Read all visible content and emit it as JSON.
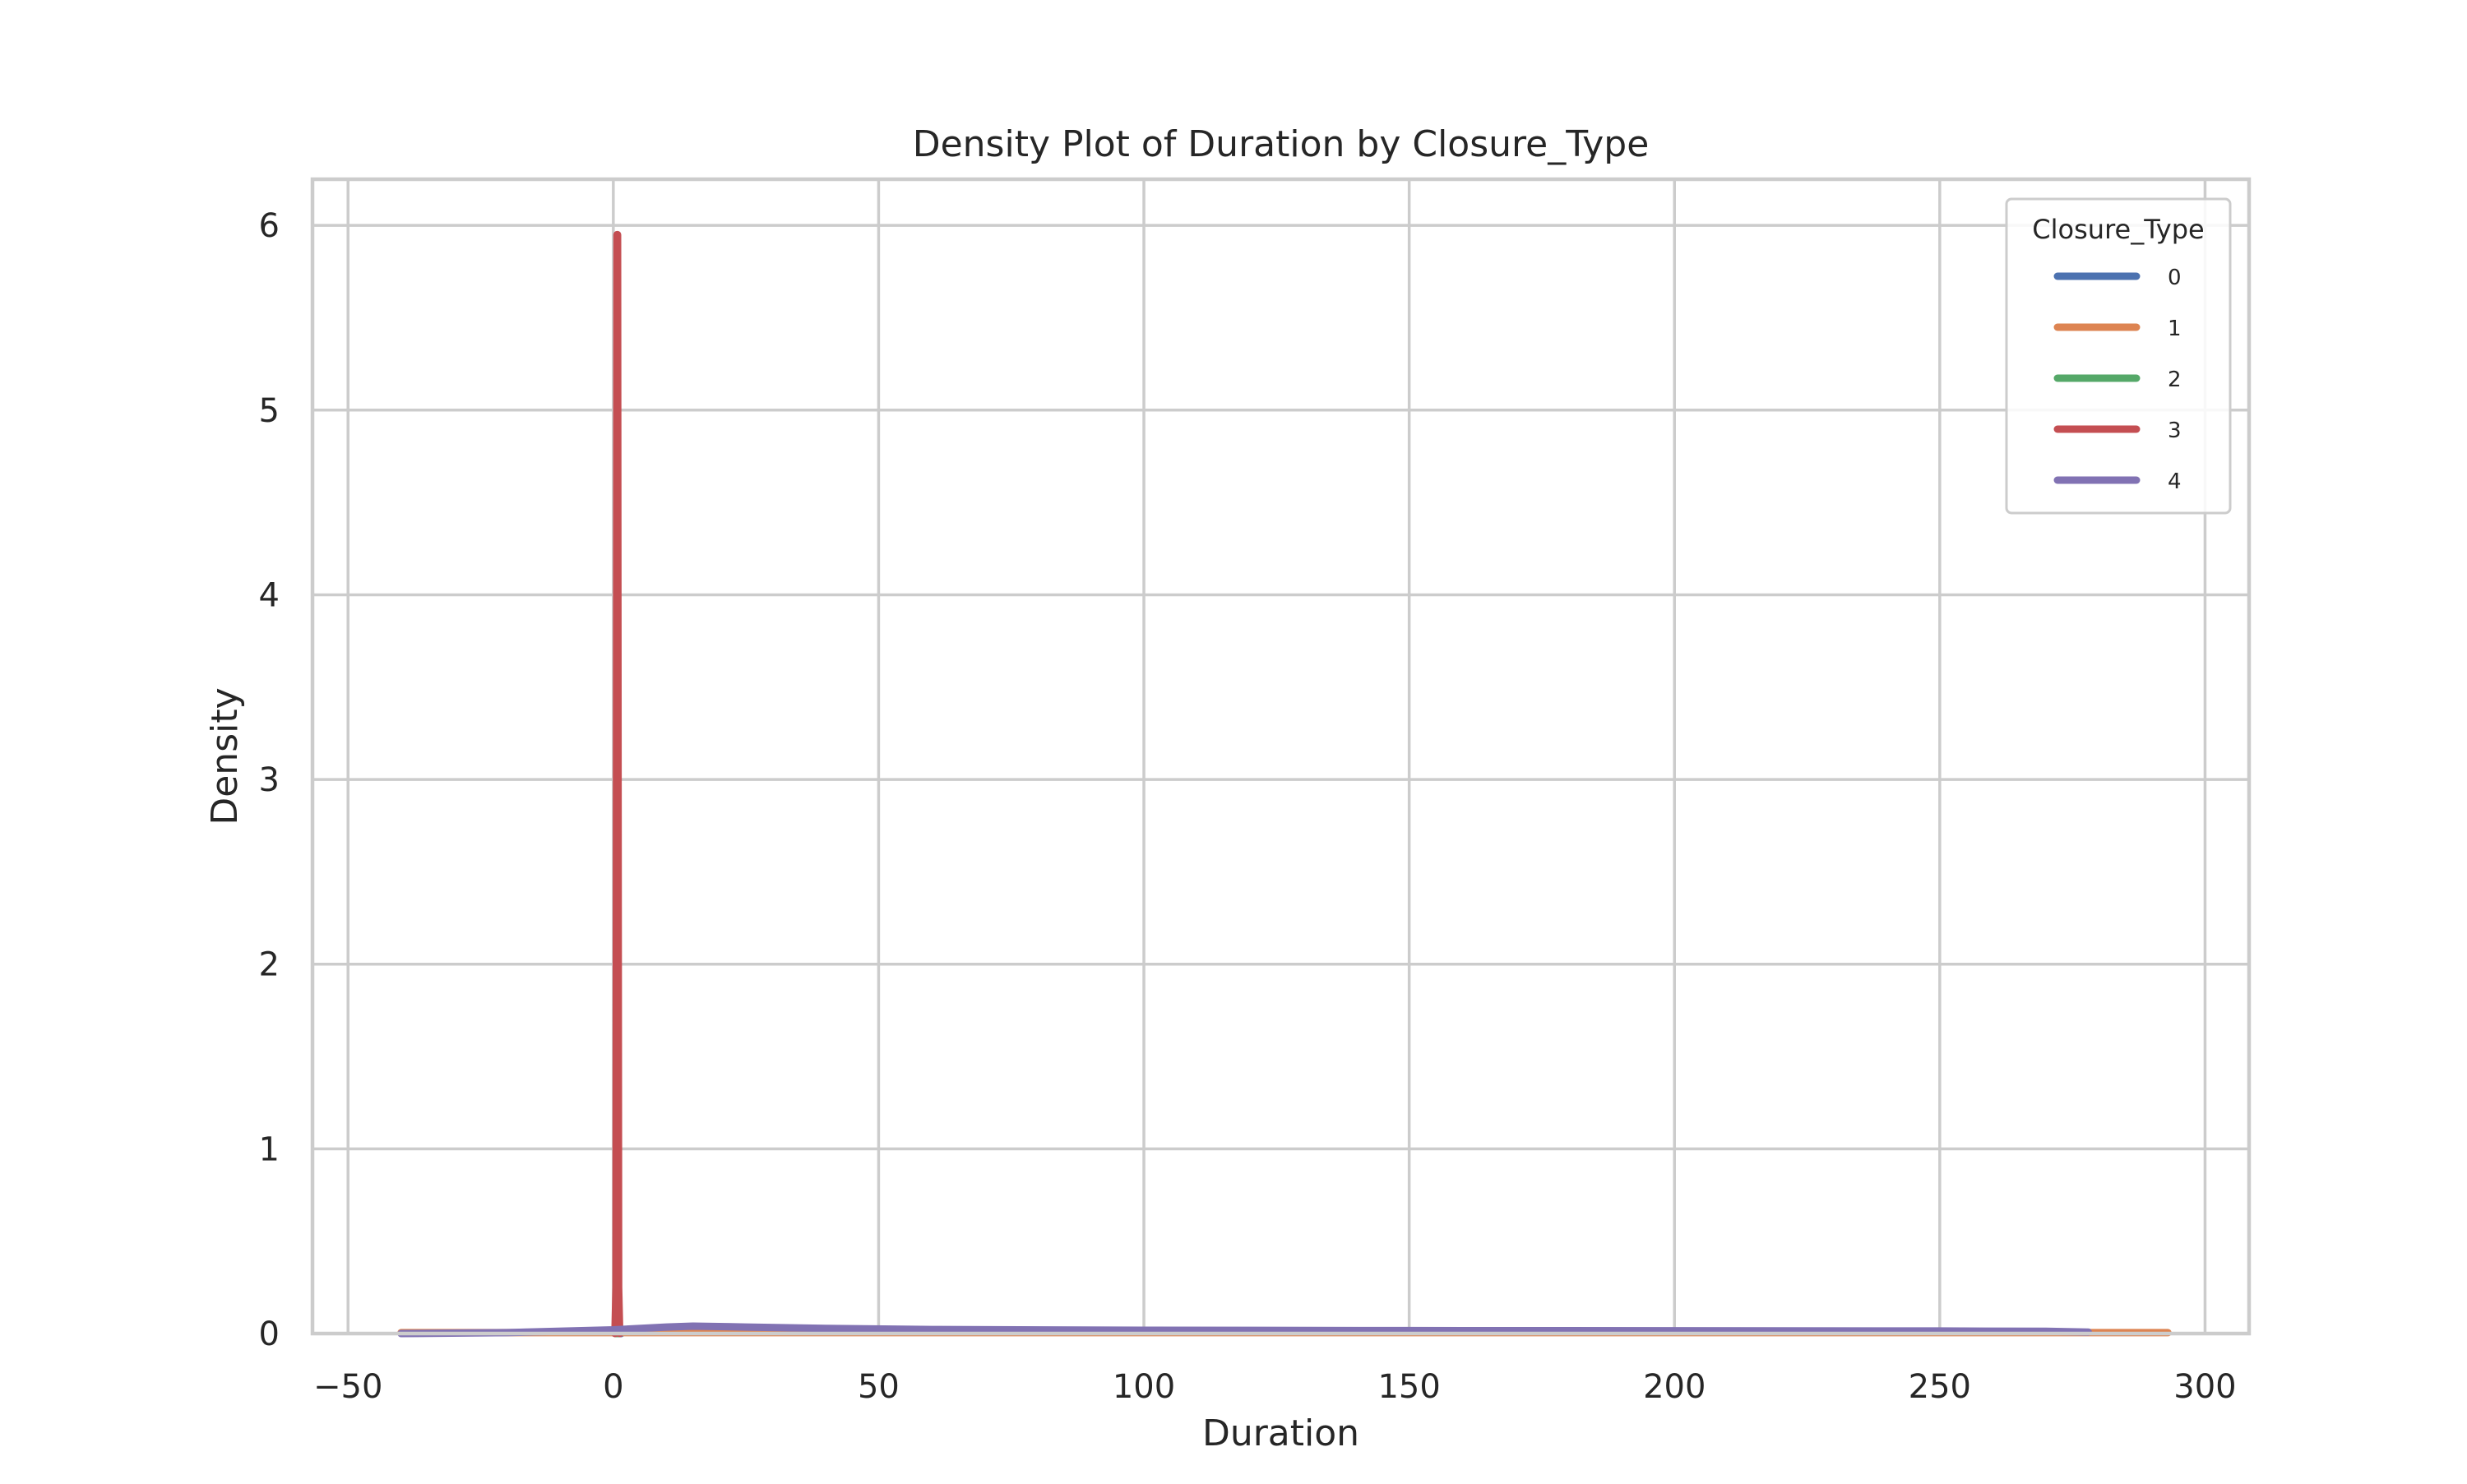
{
  "chart_data": {
    "type": "line",
    "title": "Density Plot of Duration by Closure_Type",
    "xlabel": "Duration",
    "ylabel": "Density",
    "xlim": [
      -56.7,
      308.3
    ],
    "ylim": [
      0,
      6.25
    ],
    "xticks": [
      -50,
      0,
      50,
      100,
      150,
      200,
      250,
      300
    ],
    "xtick_labels": [
      "−50",
      "0",
      "50",
      "100",
      "150",
      "200",
      "250",
      "300"
    ],
    "yticks": [
      0,
      1,
      2,
      3,
      4,
      5,
      6
    ],
    "ytick_labels": [
      "0",
      "1",
      "2",
      "3",
      "4",
      "5",
      "6"
    ],
    "grid": true,
    "legend": {
      "title": "Closure_Type",
      "placement": "top-right"
    },
    "series": [
      {
        "name": "0",
        "color": "#4c72b0",
        "x": [
          0.5,
          1.5
        ],
        "y": [
          0.0,
          0.0
        ]
      },
      {
        "name": "1",
        "color": "#dd8452",
        "x": [
          -40,
          -30,
          280,
          293
        ],
        "y": [
          0.005,
          0.005,
          0.005,
          0.005
        ]
      },
      {
        "name": "2",
        "color": "#55a868",
        "x": [
          0.4,
          1.0
        ],
        "y": [
          0.0,
          0.0
        ]
      },
      {
        "name": "3",
        "color": "#c44e52",
        "x": [
          0.3,
          0.5,
          0.6,
          0.7,
          0.8,
          0.9,
          1.0,
          1.2
        ],
        "y": [
          0.0,
          0.25,
          3.0,
          5.95,
          5.95,
          3.0,
          0.25,
          0.0
        ]
      },
      {
        "name": "4",
        "color": "#8172b3",
        "x": [
          -40,
          -20,
          0,
          10,
          15,
          25,
          40,
          60,
          100,
          150,
          200,
          250,
          270,
          278
        ],
        "y": [
          0.0,
          0.005,
          0.02,
          0.035,
          0.04,
          0.035,
          0.028,
          0.022,
          0.018,
          0.016,
          0.015,
          0.014,
          0.012,
          0.008
        ]
      }
    ]
  }
}
